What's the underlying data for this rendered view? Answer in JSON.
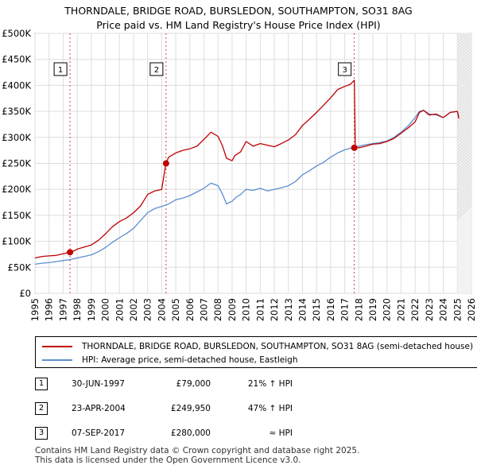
{
  "title_line1": "THORNDALE, BRIDGE ROAD, BURSLEDON, SOUTHAMPTON, SO31 8AG",
  "title_line2": "Price paid vs. HM Land Registry's House Price Index (HPI)",
  "colors": {
    "property": "#c00000",
    "hpi": "#5b8fd0",
    "marker_line": "#d04040",
    "future": "#cccccc"
  },
  "legend": {
    "property_label": "THORNDALE, BRIDGE ROAD, BURSLEDON, SOUTHAMPTON, SO31 8AG (semi-detached house)",
    "hpi_label": "HPI: Average price, semi-detached house, Eastleigh"
  },
  "sales": [
    {
      "num": "1",
      "date": "30-JUN-1997",
      "price": "£79,000",
      "hpi": "21% ↑ HPI"
    },
    {
      "num": "2",
      "date": "23-APR-2004",
      "price": "£249,950",
      "hpi": "47% ↑ HPI"
    },
    {
      "num": "3",
      "date": "07-SEP-2017",
      "price": "£280,000",
      "hpi": "≈ HPI"
    }
  ],
  "footer": {
    "line1": "Contains HM Land Registry data © Crown copyright and database right 2025.",
    "line2": "This data is licensed under the Open Government Licence v3.0."
  },
  "chart_data": {
    "type": "line",
    "title": "Price paid vs. HM Land Registry's House Price Index (HPI)",
    "xlabel": "",
    "ylabel": "",
    "xlim": [
      1995,
      2026
    ],
    "ylim": [
      0,
      500000
    ],
    "x_ticks": [
      1995,
      1996,
      1997,
      1998,
      1999,
      2000,
      2001,
      2002,
      2003,
      2004,
      2005,
      2006,
      2007,
      2008,
      2009,
      2010,
      2011,
      2012,
      2013,
      2014,
      2015,
      2016,
      2017,
      2018,
      2019,
      2020,
      2021,
      2022,
      2023,
      2024,
      2025,
      2026
    ],
    "y_ticks": [
      {
        "value": 0,
        "label": "£0"
      },
      {
        "value": 50000,
        "label": "£50K"
      },
      {
        "value": 100000,
        "label": "£100K"
      },
      {
        "value": 150000,
        "label": "£150K"
      },
      {
        "value": 200000,
        "label": "£200K"
      },
      {
        "value": 250000,
        "label": "£250K"
      },
      {
        "value": 300000,
        "label": "£300K"
      },
      {
        "value": 350000,
        "label": "£350K"
      },
      {
        "value": 400000,
        "label": "£400K"
      },
      {
        "value": 450000,
        "label": "£450K"
      },
      {
        "value": 500000,
        "label": "£500K"
      }
    ],
    "future_region_start": 2025.0,
    "series": [
      {
        "name": "THORNDALE, BRIDGE ROAD, BURSLEDON, SOUTHAMPTON, SO31 8AG (semi-detached house)",
        "x": [
          1995.0,
          1995.5,
          1996.0,
          1996.5,
          1997.0,
          1997.49,
          1997.8,
          1998.0,
          1998.5,
          1999.0,
          1999.5,
          2000.0,
          2000.5,
          2001.0,
          2001.5,
          2002.0,
          2002.5,
          2003.0,
          2003.5,
          2004.0,
          2004.3,
          2004.5,
          2005.0,
          2005.5,
          2006.0,
          2006.5,
          2007.0,
          2007.5,
          2008.0,
          2008.3,
          2008.6,
          2009.0,
          2009.2,
          2009.6,
          2010.0,
          2010.5,
          2011.0,
          2011.5,
          2012.0,
          2012.5,
          2013.0,
          2013.5,
          2014.0,
          2014.5,
          2015.0,
          2015.5,
          2016.0,
          2016.5,
          2017.0,
          2017.4,
          2017.68,
          2017.75,
          2018.0,
          2018.5,
          2019.0,
          2019.5,
          2020.0,
          2020.5,
          2021.0,
          2021.5,
          2022.0,
          2022.3,
          2022.6,
          2023.0,
          2023.5,
          2024.0,
          2024.5,
          2025.0,
          2025.1
        ],
        "values": [
          68000,
          71000,
          72000,
          73000,
          76000,
          79000,
          82000,
          85000,
          89000,
          93000,
          102000,
          114000,
          128000,
          138000,
          145000,
          155000,
          168000,
          190000,
          197000,
          200000,
          249950,
          262000,
          270000,
          275000,
          278000,
          283000,
          296000,
          310000,
          302000,
          285000,
          260000,
          255000,
          265000,
          272000,
          292000,
          283000,
          288000,
          285000,
          282000,
          288000,
          295000,
          305000,
          323000,
          335000,
          348000,
          362000,
          376000,
          392000,
          398000,
          402000,
          410000,
          280000,
          280000,
          283000,
          287000,
          288000,
          292000,
          298000,
          308000,
          318000,
          330000,
          348000,
          352000,
          343000,
          345000,
          338000,
          348000,
          350000,
          336000
        ]
      },
      {
        "name": "HPI: Average price, semi-detached house, Eastleigh",
        "x": [
          1995.0,
          1995.5,
          1996.0,
          1996.5,
          1997.0,
          1997.5,
          1998.0,
          1998.5,
          1999.0,
          1999.5,
          2000.0,
          2000.5,
          2001.0,
          2001.5,
          2002.0,
          2002.5,
          2003.0,
          2003.5,
          2004.0,
          2004.5,
          2005.0,
          2005.5,
          2006.0,
          2006.5,
          2007.0,
          2007.5,
          2008.0,
          2008.3,
          2008.6,
          2009.0,
          2009.3,
          2009.6,
          2010.0,
          2010.5,
          2011.0,
          2011.5,
          2012.0,
          2012.5,
          2013.0,
          2013.5,
          2014.0,
          2014.5,
          2015.0,
          2015.5,
          2016.0,
          2016.5,
          2017.0,
          2017.5,
          2018.0,
          2018.5,
          2019.0,
          2019.5,
          2020.0,
          2020.5,
          2021.0,
          2021.5,
          2022.0,
          2022.3,
          2022.6,
          2023.0,
          2023.5,
          2024.0,
          2024.5,
          2025.0,
          2025.1
        ],
        "values": [
          56000,
          58000,
          59000,
          61000,
          63000,
          65000,
          68000,
          71000,
          74000,
          80000,
          88000,
          98000,
          107000,
          115000,
          125000,
          140000,
          155000,
          163000,
          167000,
          172000,
          180000,
          183000,
          188000,
          195000,
          202000,
          212000,
          207000,
          192000,
          172000,
          177000,
          185000,
          190000,
          200000,
          198000,
          202000,
          197000,
          200000,
          203000,
          207000,
          215000,
          228000,
          236000,
          245000,
          252000,
          262000,
          270000,
          276000,
          280000,
          283000,
          286000,
          288000,
          290000,
          293000,
          300000,
          310000,
          322000,
          338000,
          350000,
          352000,
          345000,
          343000,
          338000,
          348000,
          350000,
          340000
        ]
      }
    ],
    "sale_markers": [
      {
        "num": "1",
        "x": 1997.49,
        "y": 79000
      },
      {
        "num": "2",
        "x": 2004.31,
        "y": 249950
      },
      {
        "num": "3",
        "x": 2017.68,
        "y": 280000
      }
    ]
  }
}
